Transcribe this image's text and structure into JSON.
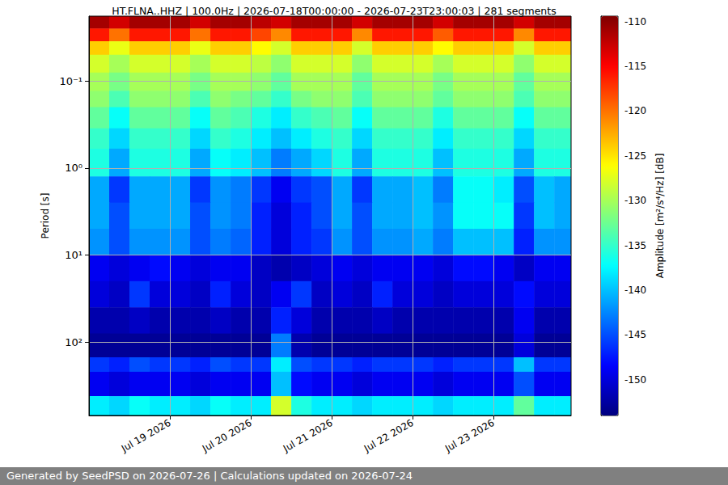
{
  "chart_data": {
    "type": "heatmap",
    "title": "HT.FLNA..HHZ | 100.0Hz | 2026-07-18T00:00:00 - 2026-07-23T23:00:03 | 281 segments",
    "y_label": "Period [s]",
    "footer": "Generated by SeedPSD on 2026-07-26 | Calculations updated on 2026-07-24",
    "log": "y",
    "grid": true,
    "xlim": [
      "2026-07-18T00:00:00",
      "2026-07-23T23:00:03"
    ],
    "xticks": [
      {
        "value": "2026-07-19T00:00:00",
        "label": "Jul 19 2026"
      },
      {
        "value": "2026-07-20T00:00:00",
        "label": "Jul 20 2026"
      },
      {
        "value": "2026-07-21T00:00:00",
        "label": "Jul 21 2026"
      },
      {
        "value": "2026-07-22T00:00:00",
        "label": "Jul 22 2026"
      },
      {
        "value": "2026-07-23T00:00:00",
        "label": "Jul 23 2026"
      }
    ],
    "ylim": [
      0.018,
      700
    ],
    "yticks": [
      {
        "value": 0.1,
        "label": "10⁻¹"
      },
      {
        "value": 1,
        "label": "10⁰"
      },
      {
        "value": 10,
        "label": "10¹"
      },
      {
        "value": 100,
        "label": "10²"
      }
    ],
    "x_edges": [
      "2026-07-18T00:00:00",
      "2026-07-18T06:00:00",
      "2026-07-18T12:00:00",
      "2026-07-18T18:00:00",
      "2026-07-19T00:00:00",
      "2026-07-19T06:00:00",
      "2026-07-19T12:00:00",
      "2026-07-19T18:00:00",
      "2026-07-20T00:00:00",
      "2026-07-20T06:00:00",
      "2026-07-20T12:00:00",
      "2026-07-20T18:00:00",
      "2026-07-21T00:00:00",
      "2026-07-21T06:00:00",
      "2026-07-21T12:00:00",
      "2026-07-21T18:00:00",
      "2026-07-22T00:00:00",
      "2026-07-22T06:00:00",
      "2026-07-22T12:00:00",
      "2026-07-22T18:00:00",
      "2026-07-23T00:00:00",
      "2026-07-23T06:00:00",
      "2026-07-23T12:00:00",
      "2026-07-23T18:00:00",
      "2026-07-23T23:00:03"
    ],
    "y_edges": [
      0.018,
      0.025,
      0.035,
      0.05,
      0.08,
      0.13,
      0.2,
      0.35,
      0.6,
      1.25,
      2.5,
      5,
      10,
      20,
      40,
      80,
      150,
      220,
      420,
      700
    ],
    "cells": [
      [
        -111,
        -113,
        -111,
        -111,
        -111,
        -113,
        -111,
        -111,
        -112,
        -113,
        -111,
        -111,
        -111,
        -113,
        -111,
        -111,
        -111,
        -113,
        -111,
        -111,
        -111,
        -113,
        -111,
        -111
      ],
      [
        -116,
        -120,
        -116,
        -116,
        -116,
        -120,
        -116,
        -116,
        -118,
        -121,
        -116,
        -116,
        -116,
        -121,
        -116,
        -116,
        -116,
        -119,
        -116,
        -116,
        -116,
        -121,
        -116,
        -116
      ],
      [
        -124,
        -127,
        -124,
        -124,
        -124,
        -127,
        -124,
        -124,
        -126,
        -128,
        -124,
        -124,
        -124,
        -128,
        -124,
        -124,
        -124,
        -126,
        -124,
        -124,
        -124,
        -128,
        -124,
        -124
      ],
      [
        -128,
        -130,
        -128,
        -128,
        -128,
        -130,
        -128,
        -128,
        -129,
        -131,
        -128,
        -128,
        -128,
        -131,
        -128,
        -128,
        -128,
        -130,
        -128,
        -128,
        -128,
        -131,
        -128,
        -128
      ],
      [
        -130,
        -132,
        -130,
        -130,
        -130,
        -132,
        -130,
        -130,
        -131,
        -133,
        -130,
        -130,
        -130,
        -133,
        -130,
        -130,
        -130,
        -132,
        -130,
        -130,
        -130,
        -133,
        -130,
        -130
      ],
      [
        -131,
        -134,
        -131,
        -131,
        -131,
        -134,
        -131,
        -132,
        -133,
        -135,
        -132,
        -131,
        -131,
        -134,
        -131,
        -131,
        -131,
        -133,
        -131,
        -131,
        -131,
        -134,
        -131,
        -131
      ],
      [
        -133,
        -137,
        -133,
        -133,
        -133,
        -137,
        -133,
        -134,
        -136,
        -138,
        -135,
        -134,
        -133,
        -137,
        -133,
        -133,
        -133,
        -136,
        -133,
        -133,
        -133,
        -137,
        -133,
        -133
      ],
      [
        -135,
        -139,
        -135,
        -135,
        -135,
        -139,
        -135,
        -136,
        -138,
        -140,
        -138,
        -136,
        -135,
        -139,
        -135,
        -135,
        -135,
        -138,
        -135,
        -135,
        -135,
        -139,
        -135,
        -135
      ],
      [
        -136,
        -141,
        -136,
        -136,
        -136,
        -141,
        -137,
        -138,
        -140,
        -143,
        -141,
        -139,
        -136,
        -141,
        -136,
        -136,
        -136,
        -140,
        -136,
        -136,
        -136,
        -141,
        -136,
        -136
      ],
      [
        -141,
        -146,
        -141,
        -141,
        -141,
        -146,
        -142,
        -143,
        -146,
        -149,
        -146,
        -145,
        -141,
        -146,
        -141,
        -141,
        -140,
        -143,
        -137,
        -137,
        -138,
        -145,
        -140,
        -141
      ],
      [
        -141,
        -145,
        -141,
        -141,
        -141,
        -145,
        -142,
        -143,
        -147,
        -150,
        -147,
        -145,
        -141,
        -145,
        -141,
        -141,
        -140,
        -142,
        -137,
        -137,
        -137,
        -146,
        -140,
        -141
      ],
      [
        -142,
        -145,
        -142,
        -142,
        -142,
        -145,
        -143,
        -144,
        -147,
        -150,
        -147,
        -146,
        -142,
        -145,
        -142,
        -142,
        -141,
        -143,
        -140,
        -140,
        -140,
        -147,
        -142,
        -142
      ],
      [
        -149,
        -150,
        -149,
        -148,
        -149,
        -150,
        -149,
        -149,
        -151,
        -152,
        -151,
        -150,
        -149,
        -150,
        -149,
        -149,
        -149,
        -150,
        -148,
        -148,
        -149,
        -151,
        -149,
        -149
      ],
      [
        -150,
        -151,
        -146,
        -150,
        -150,
        -151,
        -147,
        -150,
        -151,
        -149,
        -146,
        -151,
        -150,
        -151,
        -147,
        -150,
        -150,
        -151,
        -150,
        -150,
        -150,
        -148,
        -150,
        -150
      ],
      [
        -152,
        -152,
        -151,
        -152,
        -152,
        -152,
        -151,
        -152,
        -152,
        -147,
        -150,
        -152,
        -152,
        -152,
        -151,
        -152,
        -152,
        -152,
        -152,
        -152,
        -152,
        -149,
        -152,
        -152
      ],
      [
        -153,
        -153,
        -153,
        -153,
        -153,
        -153,
        -153,
        -153,
        -153,
        -143,
        -152,
        -153,
        -153,
        -153,
        -153,
        -153,
        -153,
        -153,
        -153,
        -153,
        -153,
        -150,
        -153,
        -153
      ],
      [
        -146,
        -147,
        -145,
        -146,
        -146,
        -147,
        -145,
        -146,
        -146,
        -138,
        -145,
        -146,
        -146,
        -147,
        -146,
        -146,
        -146,
        -147,
        -146,
        -146,
        -146,
        -140,
        -146,
        -146
      ],
      [
        -149,
        -150,
        -149,
        -149,
        -149,
        -150,
        -149,
        -149,
        -149,
        -140,
        -148,
        -149,
        -149,
        -150,
        -149,
        -149,
        -149,
        -150,
        -149,
        -149,
        -149,
        -145,
        -149,
        -149
      ],
      [
        -138,
        -139,
        -137,
        -138,
        -138,
        -139,
        -137,
        -138,
        -138,
        -128,
        -136,
        -138,
        -138,
        -139,
        -138,
        -138,
        -138,
        -139,
        -138,
        -138,
        -138,
        -133,
        -138,
        -138
      ]
    ],
    "colorbar": {
      "label": "Amplitude [m²/s⁴/Hz] [dB]",
      "range": [
        -154,
        -109.4
      ],
      "ticks": [
        -150,
        -145,
        -140,
        -135,
        -130,
        -125,
        -120,
        -115,
        -110
      ]
    }
  }
}
